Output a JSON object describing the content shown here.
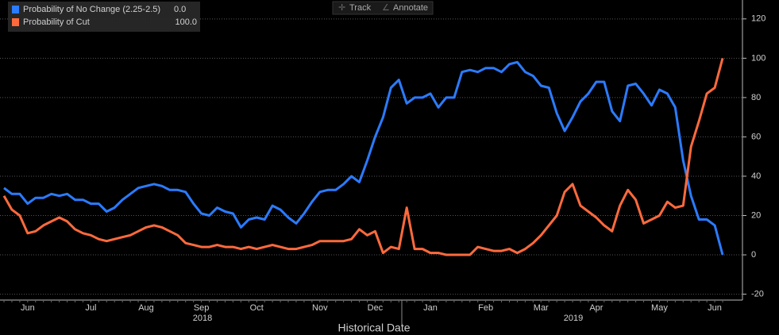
{
  "chart_data": {
    "type": "line",
    "toolbar": [
      "Track",
      "Annotate"
    ],
    "x_label": "Historical Date",
    "year_labels": [
      "2018",
      "2019"
    ],
    "categories": [
      null,
      null,
      null,
      "Jun",
      null,
      null,
      null,
      null,
      null,
      null,
      null,
      "Jul",
      null,
      null,
      null,
      null,
      null,
      null,
      "Aug",
      null,
      null,
      null,
      null,
      null,
      null,
      "Sep",
      null,
      null,
      null,
      null,
      null,
      null,
      "Oct",
      null,
      null,
      null,
      null,
      null,
      null,
      null,
      "Nov",
      null,
      null,
      null,
      null,
      null,
      null,
      "Dec",
      null,
      null,
      null,
      null,
      null,
      null,
      "Jan",
      null,
      null,
      null,
      null,
      null,
      null,
      "Feb",
      null,
      null,
      null,
      null,
      null,
      null,
      "Mar",
      null,
      null,
      null,
      null,
      null,
      null,
      "Apr",
      null,
      null,
      null,
      null,
      null,
      null,
      null,
      "May",
      null,
      null,
      null,
      null,
      null,
      null,
      "Jun",
      null
    ],
    "series": [
      {
        "name": "Probability of No Change (2.25-2.5)",
        "legend_value": "0.0",
        "color": "#2b7bff",
        "values": [
          34,
          31,
          31,
          26,
          29,
          29,
          31,
          30,
          31,
          28,
          28,
          26,
          26,
          22,
          24,
          28,
          31,
          34,
          35,
          36,
          35,
          33,
          33,
          32,
          26,
          21,
          20,
          24,
          22,
          21,
          14,
          18,
          19,
          18,
          25,
          23,
          19,
          16,
          21,
          27,
          32,
          33,
          33,
          36,
          40,
          37,
          48,
          60,
          70,
          85,
          89,
          77,
          80,
          80,
          82,
          75,
          80,
          80,
          93,
          94,
          93,
          95,
          95,
          93,
          97,
          98,
          93,
          91,
          86,
          85,
          72,
          63,
          70,
          78,
          82,
          88,
          88,
          73,
          68,
          86,
          87,
          82,
          76,
          84,
          82,
          75,
          48,
          30,
          18,
          18,
          15,
          0
        ]
      },
      {
        "name": "Probability of Cut",
        "legend_value": "100.0",
        "color": "#ff6a3d",
        "values": [
          30,
          23,
          20,
          11,
          12,
          15,
          17,
          19,
          17,
          13,
          11,
          10,
          8,
          7,
          8,
          9,
          10,
          12,
          14,
          15,
          14,
          12,
          10,
          6,
          5,
          4,
          4,
          5,
          4,
          4,
          3,
          4,
          3,
          4,
          5,
          4,
          3,
          3,
          4,
          5,
          7,
          7,
          7,
          7,
          8,
          13,
          10,
          12,
          1,
          4,
          3,
          24,
          3,
          3,
          1,
          1,
          0,
          0,
          0,
          0,
          4,
          3,
          2,
          2,
          3,
          1,
          3,
          6,
          10,
          15,
          20,
          32,
          36,
          25,
          22,
          19,
          15,
          12,
          25,
          33,
          28,
          16,
          18,
          20,
          27,
          24,
          25,
          55,
          68,
          82,
          85,
          100
        ]
      }
    ],
    "ylim": [
      -23,
      128
    ],
    "yticks": [
      -20,
      0,
      20,
      40,
      60,
      80,
      100,
      120
    ],
    "grid": true
  }
}
